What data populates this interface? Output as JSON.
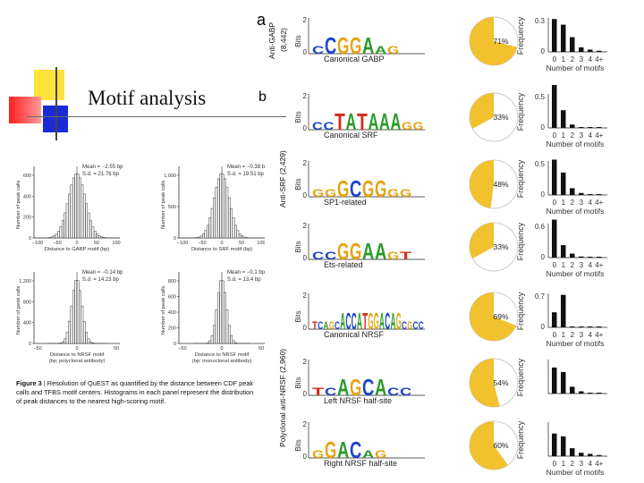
{
  "slide": {
    "title": "Motif analysis",
    "panel_a": "a",
    "panel_b": "b",
    "colors": {
      "pie_fill": "#f2c12e",
      "pie_rest": "#ffffff",
      "bar": "#111111",
      "deco_yellow": "#ffe23a",
      "deco_red": "#ff2020",
      "deco_blue": "#1a2bd6"
    }
  },
  "left_figure": {
    "caption_label": "Figure 3",
    "caption_text": "| Resolution of QuEST as quantified by the distance between CDF peak calls and TFBS motif centers. Histograms in each panel represent the distribution of peak distances to the nearest high-scoring motif.",
    "panels": [
      {
        "stat_mean": "Mean = −2.55 bp",
        "stat_sd": "S.d. = 21.76 bp",
        "ylabel": "Number of peak calls",
        "xlabel": "Distance to GABP motif (bp)",
        "yticks": [
          "0",
          "200",
          "400",
          "600"
        ],
        "xticks": [
          "−100",
          "−50",
          "0",
          "50",
          "100"
        ]
      },
      {
        "stat_mean": "Mean = −0.38 bp",
        "stat_sd": "S.d. = 19.51 bp",
        "ylabel": "Number of peak calls",
        "xlabel": "Distance to SRF motif (bp)",
        "yticks": [
          "0",
          "500",
          "1,000"
        ],
        "xticks": [
          "−100",
          "−50",
          "0",
          "50",
          "100"
        ]
      },
      {
        "stat_mean": "Mean = −0.14 bp",
        "stat_sd": "S.d. = 14.23 bp",
        "ylabel": "Number of peak calls",
        "xlabel": "Distance to NRSF motif",
        "xlabel2": "(bp; polyclonal antibody)",
        "yticks": [
          "0",
          "400",
          "800",
          "1,200"
        ],
        "xticks": [
          "−50",
          "0",
          "50"
        ]
      },
      {
        "stat_mean": "Mean = −0.1 bp",
        "stat_sd": "S.d. = 13.4 bp",
        "ylabel": "Number of peak calls",
        "xlabel": "Distance to NRSF motif",
        "xlabel2": "(bp; monoclonal antibody)",
        "yticks": [
          "0",
          "200",
          "400",
          "600",
          "800"
        ],
        "xticks": [
          "−50",
          "0",
          "50"
        ]
      }
    ]
  },
  "right_figure": {
    "group_labels": [
      {
        "line1": "Anti-GABP",
        "line2": "(8,442)"
      },
      {
        "line1": "Anti-SRF (2,429)",
        "line2": ""
      },
      {
        "line1": "Polyclonal anti-NRSF (2,960)",
        "line2": ""
      }
    ],
    "bits_label": "Bits",
    "freq_label": "Frequency",
    "num_motifs_label": "Number of motifs",
    "motif_ticks": [
      "0",
      "1",
      "2",
      "3",
      "4",
      "4+"
    ],
    "rows": [
      {
        "name": "Canonical GABP",
        "logo": "CCGGAAG",
        "pie_pct_label": "71%",
        "pie_value": 71,
        "bits_top": "2",
        "bits_zero": "0",
        "ymax_label": "0.3",
        "ymin_label": "0",
        "ymax": 0.3,
        "freqs": [
          0.29,
          0.24,
          0.13,
          0.04,
          0.02,
          0.01
        ],
        "show_ticks": true
      },
      {
        "name": "Canonical SRF",
        "logo": "CCTATAAAGG",
        "pie_pct_label": "33%",
        "pie_value": 33,
        "bits_top": "2",
        "bits_zero": "0",
        "ymax_label": "0.5",
        "ymin_label": "0",
        "ymax": 0.5,
        "freqs": [
          0.67,
          0.26,
          0.05,
          0.01,
          0.01,
          0.0
        ],
        "show_ticks": true
      },
      {
        "name": "SP1-related",
        "logo": "GGGCGGGG",
        "pie_pct_label": "48%",
        "pie_value": 48,
        "bits_top": "2",
        "bits_zero": "0",
        "ymax_label": "0.5",
        "ymin_label": "0",
        "ymax": 0.5,
        "freqs": [
          0.52,
          0.33,
          0.1,
          0.03,
          0.01,
          0.0
        ],
        "show_ticks": true
      },
      {
        "name": "Ets-related",
        "logo": "CCGGAAGT",
        "pie_pct_label": "33%",
        "pie_value": 33,
        "bits_top": "2",
        "bits_zero": "0",
        "ymax_label": "0.6",
        "ymin_label": "0",
        "ymax": 0.6,
        "freqs": [
          0.67,
          0.22,
          0.07,
          0.02,
          0.01,
          0.0
        ],
        "show_ticks": true
      },
      {
        "name": "Canonical NRSF",
        "logo": "TCAGCACCATGGACAGCGCC",
        "pie_pct_label": "69%",
        "pie_value": 69,
        "bits_top": "2",
        "bits_zero": "0",
        "ymax_label": "0.7",
        "ymin_label": "0",
        "ymax": 0.7,
        "freqs": [
          0.31,
          0.67,
          0.01,
          0.0,
          0.0,
          0.0
        ],
        "show_ticks": true
      },
      {
        "name": "Left NRSF half-site",
        "logo": "TCAGCACC",
        "pie_pct_label": "54%",
        "pie_value": 54,
        "bits_top": "2",
        "bits_zero": "0",
        "ymax_label": "",
        "ymin_label": "",
        "ymax": 0.6,
        "freqs": [
          0.46,
          0.38,
          0.12,
          0.04,
          0.01,
          0.0
        ],
        "show_ticks": false
      },
      {
        "name": "Right NRSF half-site",
        "logo": "GGACAG",
        "pie_pct_label": "60%",
        "pie_value": 60,
        "bits_top": "2",
        "bits_zero": "0",
        "ymax_label": "",
        "ymin_label": "",
        "ymax": 0.6,
        "freqs": [
          0.4,
          0.35,
          0.14,
          0.06,
          0.04,
          0.02
        ],
        "show_ticks": true
      }
    ]
  }
}
